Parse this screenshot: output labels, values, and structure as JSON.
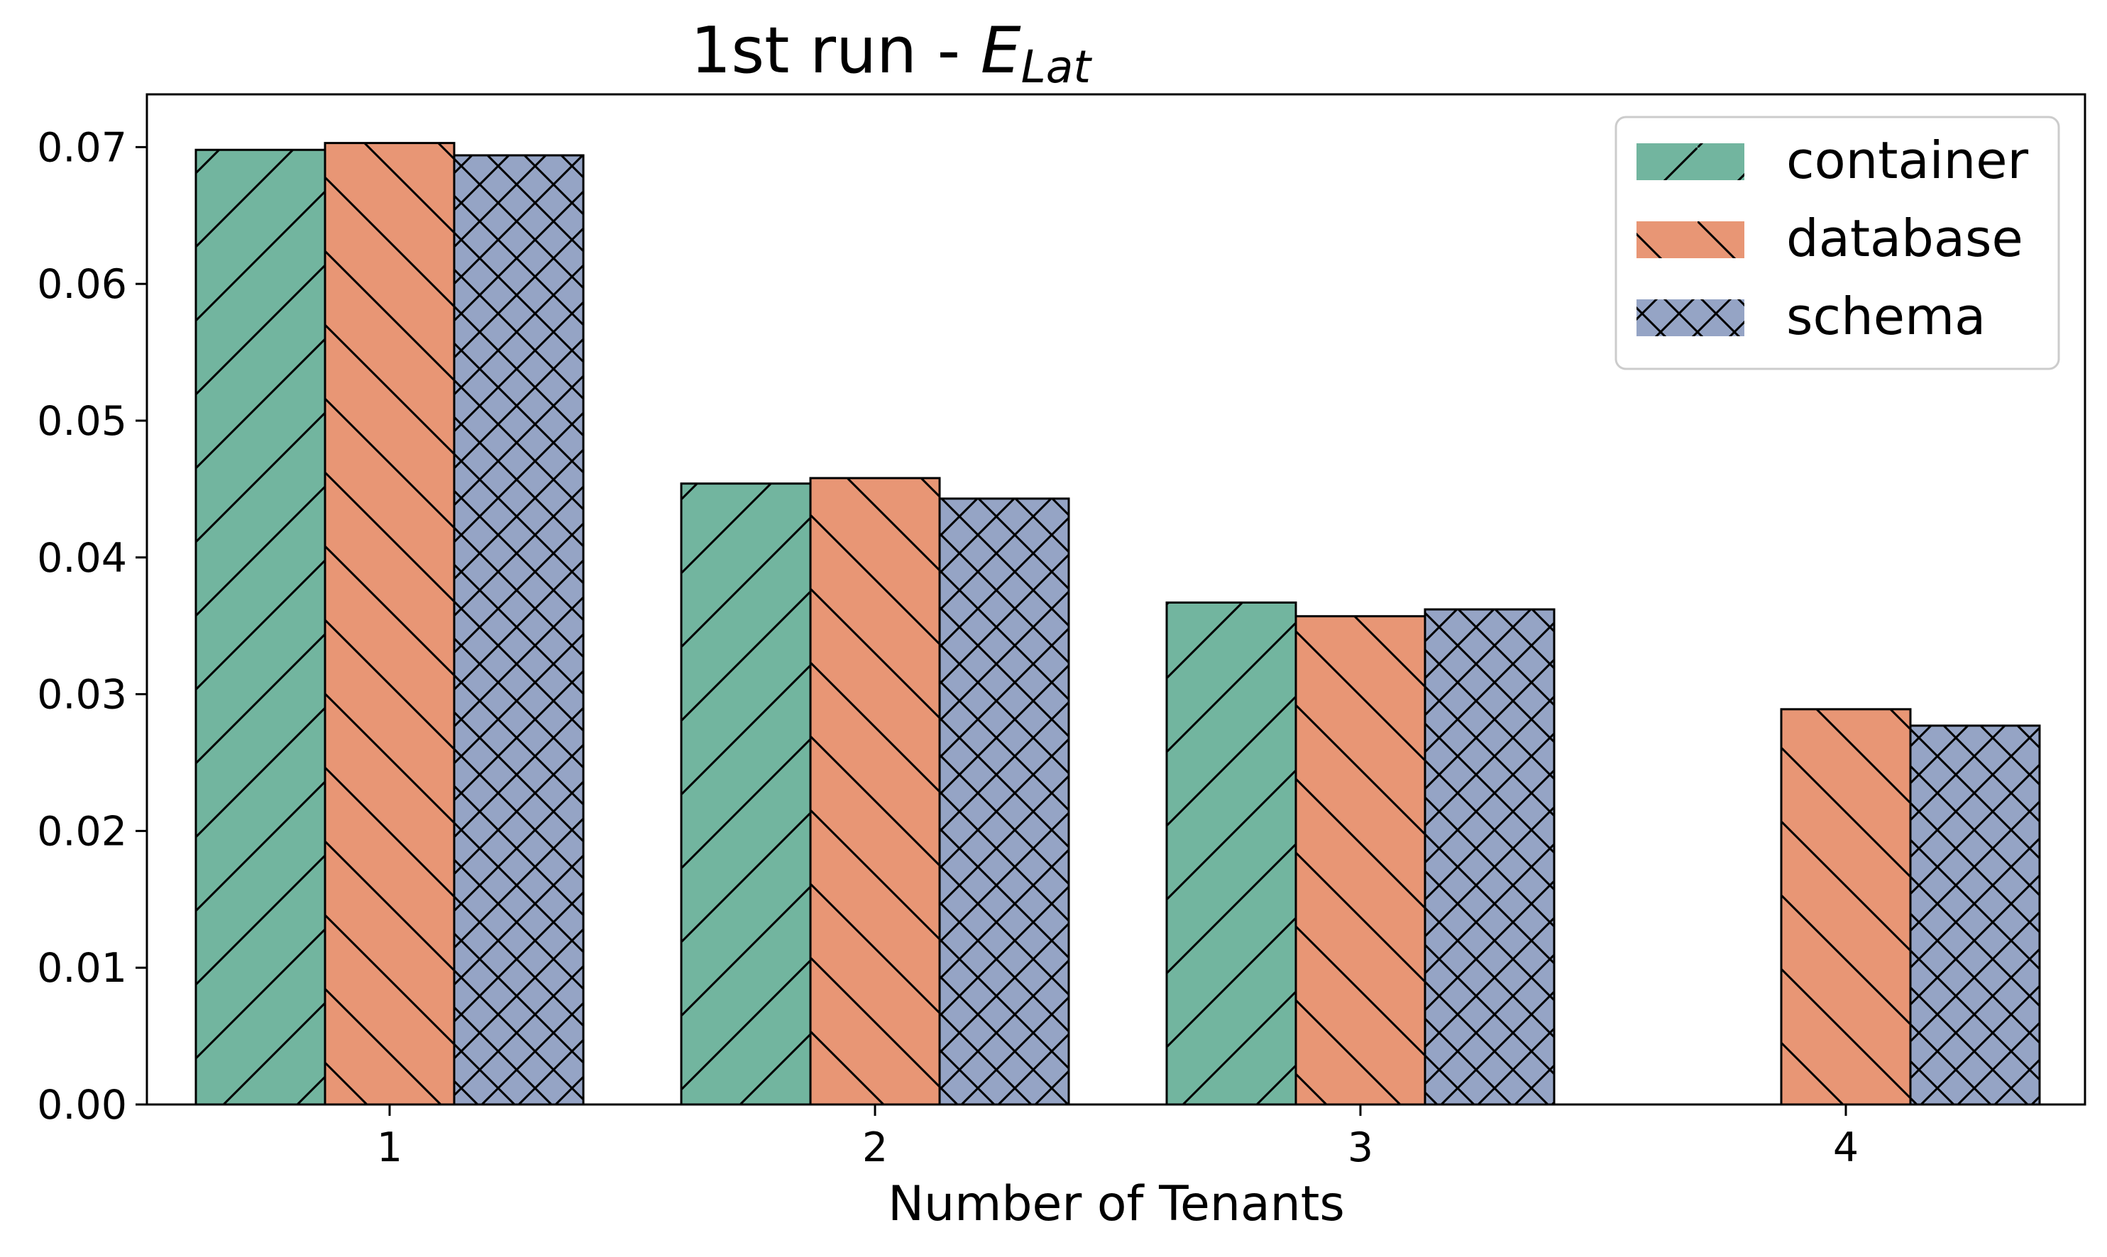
{
  "chart_data": {
    "type": "bar",
    "title": {
      "prefix": "1st run - ",
      "symbol": "E",
      "subscript": "Lat"
    },
    "xlabel": "Number of Tenants",
    "ylabel": "",
    "categories": [
      "1",
      "2",
      "3",
      "4"
    ],
    "ylim": [
      0,
      0.074
    ],
    "yticks": [
      0.0,
      0.01,
      0.02,
      0.03,
      0.04,
      0.05,
      0.06,
      0.07
    ],
    "ytick_labels": [
      "0.00",
      "0.01",
      "0.02",
      "0.03",
      "0.04",
      "0.05",
      "0.06",
      "0.07"
    ],
    "grid": false,
    "legend_position": "top-right",
    "series": [
      {
        "name": "container",
        "color": "#72b59f",
        "hatch": "forward-diagonal",
        "values": [
          0.0698,
          0.0454,
          0.0367,
          null
        ]
      },
      {
        "name": "database",
        "color": "#e89675",
        "hatch": "back-diagonal",
        "values": [
          0.0703,
          0.0458,
          0.0357,
          0.0289
        ]
      },
      {
        "name": "schema",
        "color": "#95a4c5",
        "hatch": "cross",
        "values": [
          0.0694,
          0.0443,
          0.0362,
          0.0277
        ]
      }
    ]
  }
}
